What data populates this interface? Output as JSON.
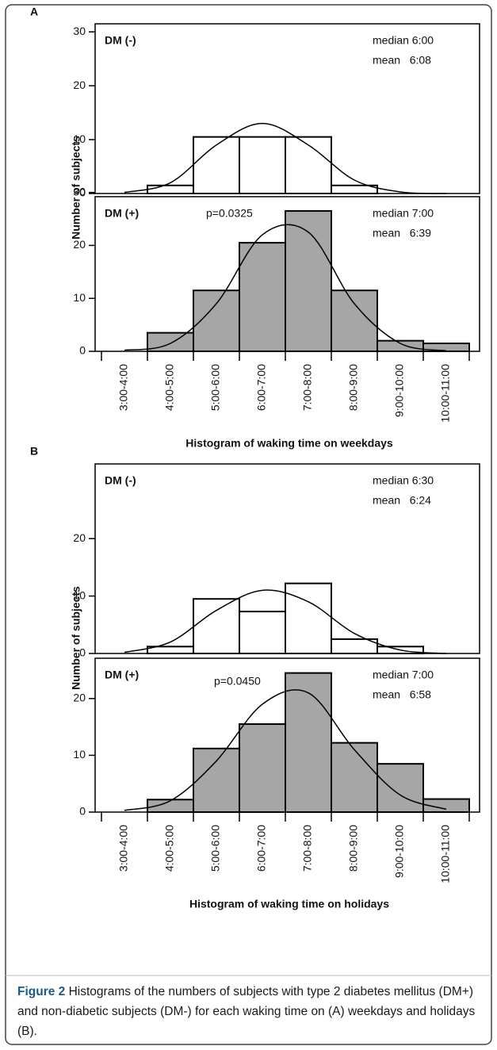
{
  "chart_data": [
    {
      "type": "bar",
      "panel_letter": "A",
      "y_label": "Number of subjects",
      "label": "DM (-)",
      "annotations": [
        "median 6:00",
        "mean   6:08"
      ],
      "values": [
        0,
        1.5,
        10.5,
        10.5,
        10.5,
        1.5,
        0,
        0
      ],
      "fit": [
        0.2,
        2,
        9,
        13,
        9,
        2.5,
        0.3,
        0
      ],
      "color": "#ffffff",
      "ylim": [
        0,
        31.5
      ],
      "yticks": [
        0,
        10,
        20,
        30
      ]
    },
    {
      "type": "bar",
      "label": "DM (+)",
      "annotations": [
        "median 7:00",
        "mean   6:39"
      ],
      "p_value": "p=0.0325",
      "categories": [
        "3:00-4:00",
        "4:00-5:00",
        "5:00-6:00",
        "6:00-7:00",
        "7:00-8:00",
        "8:00-9:00",
        "9:00-10:00",
        "10:00-11:00"
      ],
      "values": [
        0,
        3.5,
        11.5,
        20.5,
        26.5,
        11.5,
        2,
        1.5
      ],
      "fit": [
        0.2,
        1.5,
        9,
        22,
        22.5,
        9,
        1.5,
        0.1
      ],
      "color": "#a6a6a6",
      "ylim": [
        0,
        29.2
      ],
      "yticks": [
        0,
        10,
        20,
        30
      ],
      "x_label": "Histogram of waking time on weekdays"
    },
    {
      "type": "bar",
      "panel_letter": "B",
      "y_label": "Number of subjects",
      "label": "DM (-)",
      "annotations": [
        "median 6:30",
        "mean   6:24"
      ],
      "values": [
        0,
        1.2,
        9.5,
        7.3,
        12.2,
        2.5,
        1.2,
        0
      ],
      "fit": [
        0.2,
        2,
        7.5,
        11,
        9,
        3.5,
        0.6,
        0
      ],
      "color": "#ffffff",
      "ylim": [
        0,
        33
      ],
      "yticks": [
        0,
        10,
        20
      ]
    },
    {
      "type": "bar",
      "label": "DM (+)",
      "annotations": [
        "median 7:00",
        "mean   6:58"
      ],
      "p_value": "p=0.0450",
      "categories": [
        "3:00-4:00",
        "4:00-5:00",
        "5:00-6:00",
        "6:00-7:00",
        "7:00-8:00",
        "8:00-9:00",
        "9:00-10:00",
        "10:00-11:00"
      ],
      "values": [
        0,
        2.2,
        11.2,
        15.5,
        24.5,
        12.2,
        8.5,
        2.3
      ],
      "fit": [
        0.3,
        2,
        9,
        19,
        21,
        11,
        3,
        0.5
      ],
      "color": "#a6a6a6",
      "ylim": [
        0,
        27.1
      ],
      "yticks": [
        0,
        10,
        20
      ],
      "x_label": "Histogram of waking time on holidays"
    }
  ],
  "caption": {
    "bold": "Figure 2",
    "text": " Histograms of the numbers of subjects with type 2 diabetes mellitus (DM+) and non-diabetic subjects (DM-) for each waking time on (A) weekdays and holidays (B)."
  }
}
